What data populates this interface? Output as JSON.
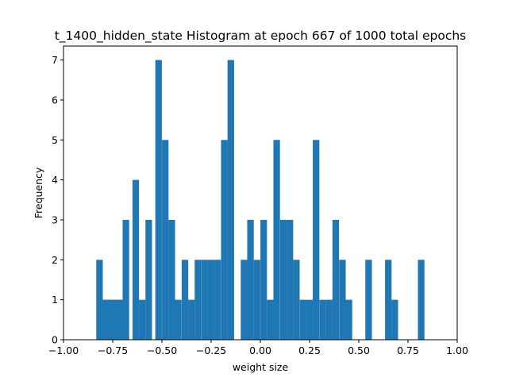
{
  "chart_data": {
    "type": "bar",
    "title": "t_1400_hidden_state Histogram at epoch 667 of 1000 total epochs",
    "xlabel": "weight size",
    "ylabel": "Frequency",
    "xlim": [
      -1.0,
      1.0
    ],
    "ylim": [
      0,
      7.35
    ],
    "grid": false,
    "bar_color": "#1f77b4",
    "x_ticks": [
      -1.0,
      -0.75,
      -0.5,
      -0.25,
      0.0,
      0.25,
      0.5,
      0.75,
      1.0
    ],
    "x_tick_labels": [
      "−1.00",
      "−0.75",
      "−0.50",
      "−0.25",
      "0.00",
      "0.25",
      "0.50",
      "0.75",
      "1.00"
    ],
    "y_ticks": [
      0,
      1,
      2,
      3,
      4,
      5,
      6,
      7
    ],
    "y_tick_labels": [
      "0",
      "1",
      "2",
      "3",
      "4",
      "5",
      "6",
      "7"
    ],
    "bin_width": 0.0333,
    "bins": [
      {
        "x": -0.817,
        "count": 2
      },
      {
        "x": -0.8,
        "count": 1
      },
      {
        "x": -0.783,
        "count": 1
      },
      {
        "x": -0.767,
        "count": 1
      },
      {
        "x": -0.75,
        "count": 1
      },
      {
        "x": -0.733,
        "count": 1
      },
      {
        "x": -0.717,
        "count": 1
      },
      {
        "x": -0.7,
        "count": 1
      },
      {
        "x": -0.683,
        "count": 3
      },
      {
        "x": -0.633,
        "count": 4
      },
      {
        "x": -0.6,
        "count": 1
      },
      {
        "x": -0.567,
        "count": 3
      },
      {
        "x": -0.517,
        "count": 7
      },
      {
        "x": -0.483,
        "count": 5
      },
      {
        "x": -0.45,
        "count": 3
      },
      {
        "x": -0.417,
        "count": 1
      },
      {
        "x": -0.383,
        "count": 2
      },
      {
        "x": -0.35,
        "count": 1
      },
      {
        "x": -0.317,
        "count": 2
      },
      {
        "x": -0.283,
        "count": 2
      },
      {
        "x": -0.25,
        "count": 2
      },
      {
        "x": -0.217,
        "count": 2
      },
      {
        "x": -0.183,
        "count": 5
      },
      {
        "x": -0.15,
        "count": 7
      },
      {
        "x": -0.083,
        "count": 2
      },
      {
        "x": -0.05,
        "count": 3
      },
      {
        "x": -0.017,
        "count": 2
      },
      {
        "x": 0.017,
        "count": 3
      },
      {
        "x": 0.05,
        "count": 1
      },
      {
        "x": 0.083,
        "count": 5
      },
      {
        "x": 0.117,
        "count": 3
      },
      {
        "x": 0.15,
        "count": 3
      },
      {
        "x": 0.183,
        "count": 2
      },
      {
        "x": 0.217,
        "count": 1
      },
      {
        "x": 0.25,
        "count": 1
      },
      {
        "x": 0.283,
        "count": 5
      },
      {
        "x": 0.317,
        "count": 1
      },
      {
        "x": 0.35,
        "count": 1
      },
      {
        "x": 0.383,
        "count": 3
      },
      {
        "x": 0.417,
        "count": 2
      },
      {
        "x": 0.45,
        "count": 1
      },
      {
        "x": 0.55,
        "count": 2
      },
      {
        "x": 0.65,
        "count": 2
      },
      {
        "x": 0.683,
        "count": 1
      },
      {
        "x": 0.817,
        "count": 2
      }
    ]
  }
}
